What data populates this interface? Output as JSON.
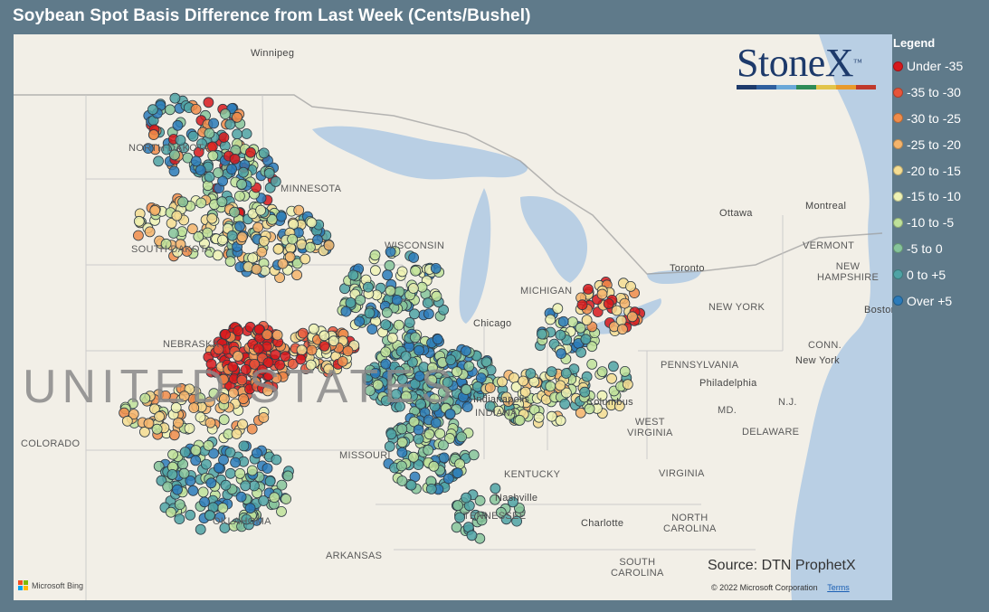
{
  "title": "Soybean Spot Basis Difference from Last Week (Cents/Bushel)",
  "legend": {
    "title": "Legend",
    "items": [
      {
        "label": "Under -35",
        "color": "#d7191c"
      },
      {
        "label": "-35 to -30",
        "color": "#e8553a"
      },
      {
        "label": "-30 to -25",
        "color": "#f08c4a"
      },
      {
        "label": "-25 to -20",
        "color": "#f5b46b"
      },
      {
        "label": "-20 to -15",
        "color": "#f5dd92"
      },
      {
        "label": "-15 to -10",
        "color": "#eef2b4"
      },
      {
        "label": "-10 to -5",
        "color": "#bfe29a"
      },
      {
        "label": "-5 to 0",
        "color": "#86c49a"
      },
      {
        "label": "0 to +5",
        "color": "#4fa3a5"
      },
      {
        "label": "Over +5",
        "color": "#2b7bba"
      }
    ]
  },
  "logo": {
    "text": "StoneX",
    "tm": "™",
    "bar_colors": [
      "#1d3a6b",
      "#2f5f9e",
      "#6aa8d8",
      "#2e8b57",
      "#e2c44a",
      "#e89a2c",
      "#c0392b"
    ]
  },
  "source": "Source: DTN ProphetX",
  "copyright": "© 2022 Microsoft Corporation",
  "terms": "Terms",
  "bing_label": "Microsoft Bing",
  "map_labels": {
    "winnipeg": "Winnipeg",
    "north_dakota": "NORTH DAKOTA",
    "minnesota": "MINNESOTA",
    "south_dakota": "SOUTH DAKOTA",
    "nebraska": "NEBRASKA",
    "united_states": "UNITED STATES",
    "colorado": "COLORADO",
    "wisconsin": "WISCONSIN",
    "michigan": "MICHIGAN",
    "chicago": "Chicago",
    "indianapolis": "Indianapolis",
    "indiana": "INDIANA",
    "missouri": "MISSOURI",
    "oklahoma": "OKLAHOMA",
    "arkansas": "ARKANSAS",
    "kentucky": "KENTUCKY",
    "tennessee": "TENNESSEE",
    "nashville": "Nashville",
    "columbus": "Columbus",
    "west_virginia": "WEST\nVIRGINIA",
    "virginia": "VIRGINIA",
    "north_carolina": "NORTH\nCAROLINA",
    "south_carolina": "SOUTH\nCAROLINA",
    "charlotte": "Charlotte",
    "pennsylvania": "PENNSYLVANIA",
    "philadelphia": "Philadelphia",
    "new_york_state": "NEW YORK",
    "new_york_city": "New York",
    "new_jersey": "N.J.",
    "maryland": "MD.",
    "delaware": "DELAWARE",
    "connecticut": "CONN.",
    "vermont": "VERMONT",
    "new_hampshire": "NEW\nHAMPSHIRE",
    "boston": "Boston",
    "toronto": "Toronto",
    "ottawa": "Ottawa",
    "montreal": "Montreal"
  }
}
